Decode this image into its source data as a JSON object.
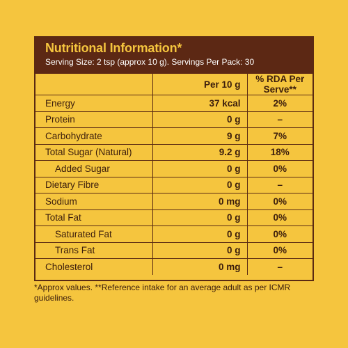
{
  "panel": {
    "title": "Nutritional Information*",
    "serving_info": "Serving Size: 2 tsp (approx 10 g). Servings Per Pack: 30"
  },
  "table": {
    "headers": [
      "",
      "Per 10 g",
      "% RDA Per Serve**"
    ],
    "rows": [
      {
        "nutrient": "Energy",
        "per": "37 kcal",
        "rda": "2%",
        "sub": false
      },
      {
        "nutrient": "Protein",
        "per": "0 g",
        "rda": "–",
        "sub": false
      },
      {
        "nutrient": "Carbohydrate",
        "per": "9 g",
        "rda": "7%",
        "sub": false
      },
      {
        "nutrient": "Total Sugar (Natural)",
        "per": "9.2 g",
        "rda": "18%",
        "sub": false
      },
      {
        "nutrient": "Added Sugar",
        "per": "0 g",
        "rda": "0%",
        "sub": true
      },
      {
        "nutrient": "Dietary Fibre",
        "per": "0 g",
        "rda": "–",
        "sub": false
      },
      {
        "nutrient": "Sodium",
        "per": "0 mg",
        "rda": "0%",
        "sub": false
      },
      {
        "nutrient": "Total Fat",
        "per": "0 g",
        "rda": "0%",
        "sub": false
      },
      {
        "nutrient": "Saturated Fat",
        "per": "0 g",
        "rda": "0%",
        "sub": true
      },
      {
        "nutrient": "Trans Fat",
        "per": "0 g",
        "rda": "0%",
        "sub": true
      },
      {
        "nutrient": "Cholesterol",
        "per": "0 mg",
        "rda": "–",
        "sub": false
      }
    ]
  },
  "footnote": "*Approx values. **Reference intake for an average adult as per ICMR guidelines.",
  "colors": {
    "background": "#f5c53e",
    "header_bg": "#5c2814",
    "border": "#5a2a12",
    "text": "#3b1d0c"
  }
}
